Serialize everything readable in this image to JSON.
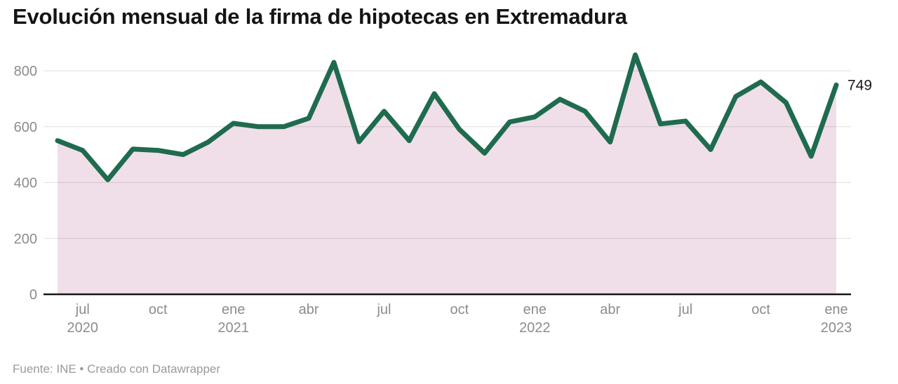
{
  "header": {
    "title": "Evolución mensual de la firma de hipotecas en Extremadura"
  },
  "footer": {
    "credit": "Fuente: INE • Creado con Datawrapper"
  },
  "chart_data": {
    "type": "area",
    "title": "Evolución mensual de la firma de hipotecas en Extremadura",
    "xlabel": "",
    "ylabel": "",
    "x": [
      "jun 2020",
      "jul 2020",
      "ago 2020",
      "sep 2020",
      "oct 2020",
      "nov 2020",
      "dic 2020",
      "ene 2021",
      "feb 2021",
      "mar 2021",
      "abr 2021",
      "may 2021",
      "jun 2021",
      "jul 2021",
      "ago 2021",
      "sep 2021",
      "oct 2021",
      "nov 2021",
      "dic 2021",
      "ene 2022",
      "feb 2022",
      "mar 2022",
      "abr 2022",
      "may 2022",
      "jun 2022",
      "jul 2022",
      "ago 2022",
      "sep 2022",
      "oct 2022",
      "nov 2022",
      "dic 2022",
      "ene 2023"
    ],
    "values": [
      550,
      515,
      410,
      520,
      515,
      500,
      545,
      612,
      600,
      600,
      630,
      830,
      546,
      655,
      550,
      718,
      590,
      505,
      617,
      635,
      698,
      655,
      545,
      857,
      610,
      620,
      518,
      708,
      760,
      686,
      494,
      749
    ],
    "ylim": [
      0,
      800
    ],
    "yticks": [
      0,
      200,
      400,
      600,
      800
    ],
    "xticks": [
      {
        "index": 1,
        "month": "jul",
        "year": "2020"
      },
      {
        "index": 4,
        "month": "oct"
      },
      {
        "index": 7,
        "month": "ene",
        "year": "2021"
      },
      {
        "index": 10,
        "month": "abr"
      },
      {
        "index": 13,
        "month": "jul"
      },
      {
        "index": 16,
        "month": "oct"
      },
      {
        "index": 19,
        "month": "ene",
        "year": "2022"
      },
      {
        "index": 22,
        "month": "abr"
      },
      {
        "index": 25,
        "month": "jul"
      },
      {
        "index": 28,
        "month": "oct"
      },
      {
        "index": 31,
        "month": "ene",
        "year": "2023"
      }
    ],
    "end_label": "749",
    "grid": true,
    "legend": false,
    "colors": {
      "line": "#1f6b4e",
      "area": "#f0dfe9",
      "grid": "rgba(0,0,0,0.10)",
      "axis_text": "#8c8c8c",
      "baseline": "#161616",
      "value_label": "#1a1a1a"
    }
  }
}
